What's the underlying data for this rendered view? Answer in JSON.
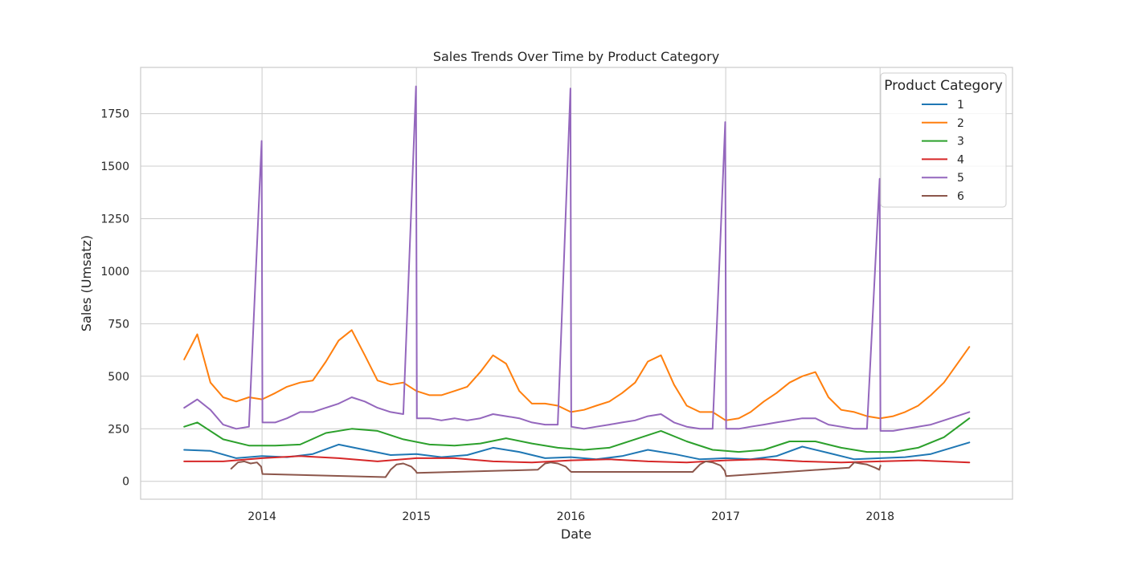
{
  "chart_data": {
    "type": "line",
    "title": "Sales Trends Over Time by Product Category",
    "xlabel": "Date",
    "ylabel": "Sales (Umsatz)",
    "x_range": [
      "2013-07-01",
      "2018-07-31"
    ],
    "x_axis_view": [
      "2013-03-20",
      "2018-11-10"
    ],
    "ylim": [
      -85,
      1970
    ],
    "x_ticks": [
      "2014",
      "2015",
      "2016",
      "2017",
      "2018"
    ],
    "x_tick_dates": [
      "2014-01-01",
      "2015-01-01",
      "2016-01-01",
      "2017-01-01",
      "2018-01-01"
    ],
    "y_ticks": [
      0,
      250,
      500,
      750,
      1000,
      1250,
      1500,
      1750
    ],
    "grid": true,
    "legend": {
      "title": "Product Category",
      "placement": "top-right"
    },
    "series": [
      {
        "name": "1",
        "color": "#1f77b4",
        "points": [
          [
            "2013-07-01",
            150
          ],
          [
            "2013-09-01",
            145
          ],
          [
            "2013-11-01",
            110
          ],
          [
            "2014-01-01",
            120
          ],
          [
            "2014-03-01",
            115
          ],
          [
            "2014-05-01",
            130
          ],
          [
            "2014-07-01",
            175
          ],
          [
            "2014-09-01",
            150
          ],
          [
            "2014-11-01",
            125
          ],
          [
            "2015-01-01",
            130
          ],
          [
            "2015-03-01",
            115
          ],
          [
            "2015-05-01",
            125
          ],
          [
            "2015-07-01",
            160
          ],
          [
            "2015-09-01",
            140
          ],
          [
            "2015-11-01",
            110
          ],
          [
            "2016-01-01",
            115
          ],
          [
            "2016-03-01",
            105
          ],
          [
            "2016-05-01",
            120
          ],
          [
            "2016-07-01",
            150
          ],
          [
            "2016-09-01",
            130
          ],
          [
            "2016-11-01",
            105
          ],
          [
            "2017-01-01",
            110
          ],
          [
            "2017-03-01",
            105
          ],
          [
            "2017-05-01",
            120
          ],
          [
            "2017-07-01",
            165
          ],
          [
            "2017-09-01",
            135
          ],
          [
            "2017-11-01",
            105
          ],
          [
            "2018-01-01",
            110
          ],
          [
            "2018-03-01",
            115
          ],
          [
            "2018-05-01",
            130
          ],
          [
            "2018-07-31",
            185
          ]
        ]
      },
      {
        "name": "2",
        "color": "#ff7f0e",
        "points": [
          [
            "2013-07-01",
            580
          ],
          [
            "2013-08-01",
            700
          ],
          [
            "2013-09-01",
            470
          ],
          [
            "2013-10-01",
            400
          ],
          [
            "2013-11-01",
            380
          ],
          [
            "2013-12-01",
            400
          ],
          [
            "2014-01-01",
            390
          ],
          [
            "2014-02-01",
            420
          ],
          [
            "2014-03-01",
            450
          ],
          [
            "2014-04-01",
            470
          ],
          [
            "2014-05-01",
            480
          ],
          [
            "2014-06-01",
            570
          ],
          [
            "2014-07-01",
            670
          ],
          [
            "2014-08-01",
            720
          ],
          [
            "2014-09-01",
            600
          ],
          [
            "2014-10-01",
            480
          ],
          [
            "2014-11-01",
            460
          ],
          [
            "2014-12-01",
            470
          ],
          [
            "2015-01-01",
            430
          ],
          [
            "2015-02-01",
            410
          ],
          [
            "2015-03-01",
            410
          ],
          [
            "2015-04-01",
            430
          ],
          [
            "2015-05-01",
            450
          ],
          [
            "2015-06-01",
            520
          ],
          [
            "2015-07-01",
            600
          ],
          [
            "2015-08-01",
            560
          ],
          [
            "2015-09-01",
            430
          ],
          [
            "2015-10-01",
            370
          ],
          [
            "2015-11-01",
            370
          ],
          [
            "2015-12-01",
            360
          ],
          [
            "2016-01-01",
            330
          ],
          [
            "2016-02-01",
            340
          ],
          [
            "2016-03-01",
            360
          ],
          [
            "2016-04-01",
            380
          ],
          [
            "2016-05-01",
            420
          ],
          [
            "2016-06-01",
            470
          ],
          [
            "2016-07-01",
            570
          ],
          [
            "2016-08-01",
            600
          ],
          [
            "2016-09-01",
            460
          ],
          [
            "2016-10-01",
            360
          ],
          [
            "2016-11-01",
            330
          ],
          [
            "2016-12-01",
            330
          ],
          [
            "2017-01-01",
            290
          ],
          [
            "2017-02-01",
            300
          ],
          [
            "2017-03-01",
            330
          ],
          [
            "2017-04-01",
            380
          ],
          [
            "2017-05-01",
            420
          ],
          [
            "2017-06-01",
            470
          ],
          [
            "2017-07-01",
            500
          ],
          [
            "2017-08-01",
            520
          ],
          [
            "2017-09-01",
            400
          ],
          [
            "2017-10-01",
            340
          ],
          [
            "2017-11-01",
            330
          ],
          [
            "2017-12-01",
            310
          ],
          [
            "2018-01-01",
            300
          ],
          [
            "2018-02-01",
            310
          ],
          [
            "2018-03-01",
            330
          ],
          [
            "2018-04-01",
            360
          ],
          [
            "2018-05-01",
            410
          ],
          [
            "2018-06-01",
            470
          ],
          [
            "2018-07-31",
            640
          ]
        ]
      },
      {
        "name": "3",
        "color": "#2ca02c",
        "points": [
          [
            "2013-07-01",
            260
          ],
          [
            "2013-08-01",
            280
          ],
          [
            "2013-10-01",
            200
          ],
          [
            "2013-12-01",
            170
          ],
          [
            "2014-02-01",
            170
          ],
          [
            "2014-04-01",
            175
          ],
          [
            "2014-06-01",
            230
          ],
          [
            "2014-08-01",
            250
          ],
          [
            "2014-10-01",
            240
          ],
          [
            "2014-12-01",
            200
          ],
          [
            "2015-02-01",
            175
          ],
          [
            "2015-04-01",
            170
          ],
          [
            "2015-06-01",
            180
          ],
          [
            "2015-08-01",
            205
          ],
          [
            "2015-10-01",
            180
          ],
          [
            "2015-12-01",
            160
          ],
          [
            "2016-02-01",
            150
          ],
          [
            "2016-04-01",
            160
          ],
          [
            "2016-06-01",
            200
          ],
          [
            "2016-08-01",
            240
          ],
          [
            "2016-10-01",
            190
          ],
          [
            "2016-12-01",
            150
          ],
          [
            "2017-02-01",
            140
          ],
          [
            "2017-04-01",
            150
          ],
          [
            "2017-06-01",
            190
          ],
          [
            "2017-08-01",
            190
          ],
          [
            "2017-10-01",
            160
          ],
          [
            "2017-12-01",
            140
          ],
          [
            "2018-02-01",
            140
          ],
          [
            "2018-04-01",
            160
          ],
          [
            "2018-06-01",
            210
          ],
          [
            "2018-07-31",
            300
          ]
        ]
      },
      {
        "name": "4",
        "color": "#d62728",
        "points": [
          [
            "2013-07-01",
            95
          ],
          [
            "2013-10-01",
            95
          ],
          [
            "2014-01-01",
            110
          ],
          [
            "2014-04-01",
            120
          ],
          [
            "2014-07-01",
            110
          ],
          [
            "2014-10-01",
            95
          ],
          [
            "2015-01-01",
            110
          ],
          [
            "2015-04-01",
            110
          ],
          [
            "2015-07-01",
            95
          ],
          [
            "2015-10-01",
            90
          ],
          [
            "2016-01-01",
            100
          ],
          [
            "2016-04-01",
            105
          ],
          [
            "2016-07-01",
            95
          ],
          [
            "2016-10-01",
            90
          ],
          [
            "2017-01-01",
            100
          ],
          [
            "2017-04-01",
            105
          ],
          [
            "2017-07-01",
            95
          ],
          [
            "2017-10-01",
            90
          ],
          [
            "2018-01-01",
            95
          ],
          [
            "2018-04-01",
            100
          ],
          [
            "2018-07-31",
            90
          ]
        ]
      },
      {
        "name": "5",
        "color": "#9467bd",
        "points": [
          [
            "2013-07-01",
            350
          ],
          [
            "2013-08-01",
            390
          ],
          [
            "2013-09-01",
            340
          ],
          [
            "2013-10-01",
            270
          ],
          [
            "2013-11-01",
            250
          ],
          [
            "2013-12-01",
            260
          ],
          [
            "2013-12-31",
            1620
          ],
          [
            "2014-01-02",
            280
          ],
          [
            "2014-02-01",
            280
          ],
          [
            "2014-03-01",
            300
          ],
          [
            "2014-04-01",
            330
          ],
          [
            "2014-05-01",
            330
          ],
          [
            "2014-06-01",
            350
          ],
          [
            "2014-07-01",
            370
          ],
          [
            "2014-08-01",
            400
          ],
          [
            "2014-09-01",
            380
          ],
          [
            "2014-10-01",
            350
          ],
          [
            "2014-11-01",
            330
          ],
          [
            "2014-12-01",
            320
          ],
          [
            "2014-12-31",
            1880
          ],
          [
            "2015-01-02",
            300
          ],
          [
            "2015-02-01",
            300
          ],
          [
            "2015-03-01",
            290
          ],
          [
            "2015-04-01",
            300
          ],
          [
            "2015-05-01",
            290
          ],
          [
            "2015-06-01",
            300
          ],
          [
            "2015-07-01",
            320
          ],
          [
            "2015-08-01",
            310
          ],
          [
            "2015-09-01",
            300
          ],
          [
            "2015-10-01",
            280
          ],
          [
            "2015-11-01",
            270
          ],
          [
            "2015-12-01",
            270
          ],
          [
            "2015-12-31",
            1870
          ],
          [
            "2016-01-02",
            260
          ],
          [
            "2016-02-01",
            250
          ],
          [
            "2016-03-01",
            260
          ],
          [
            "2016-04-01",
            270
          ],
          [
            "2016-05-01",
            280
          ],
          [
            "2016-06-01",
            290
          ],
          [
            "2016-07-01",
            310
          ],
          [
            "2016-08-01",
            320
          ],
          [
            "2016-09-01",
            280
          ],
          [
            "2016-10-01",
            260
          ],
          [
            "2016-11-01",
            250
          ],
          [
            "2016-12-01",
            250
          ],
          [
            "2016-12-31",
            1710
          ],
          [
            "2017-01-02",
            250
          ],
          [
            "2017-02-01",
            250
          ],
          [
            "2017-03-01",
            260
          ],
          [
            "2017-04-01",
            270
          ],
          [
            "2017-05-01",
            280
          ],
          [
            "2017-06-01",
            290
          ],
          [
            "2017-07-01",
            300
          ],
          [
            "2017-08-01",
            300
          ],
          [
            "2017-09-01",
            270
          ],
          [
            "2017-10-01",
            260
          ],
          [
            "2017-11-01",
            250
          ],
          [
            "2017-12-01",
            250
          ],
          [
            "2017-12-31",
            1440
          ],
          [
            "2018-01-02",
            240
          ],
          [
            "2018-02-01",
            240
          ],
          [
            "2018-03-01",
            250
          ],
          [
            "2018-04-01",
            260
          ],
          [
            "2018-05-01",
            270
          ],
          [
            "2018-06-01",
            290
          ],
          [
            "2018-07-31",
            330
          ]
        ]
      },
      {
        "name": "6",
        "color": "#8c564b",
        "points": [
          [
            "2013-10-20",
            60
          ],
          [
            "2013-11-05",
            90
          ],
          [
            "2013-11-20",
            95
          ],
          [
            "2013-12-05",
            85
          ],
          [
            "2013-12-20",
            90
          ],
          [
            "2013-12-30",
            70
          ],
          [
            "2014-01-02",
            35
          ],
          [
            "2014-10-20",
            20
          ],
          [
            "2014-11-01",
            55
          ],
          [
            "2014-11-15",
            80
          ],
          [
            "2014-12-01",
            85
          ],
          [
            "2014-12-20",
            70
          ],
          [
            "2014-12-30",
            50
          ],
          [
            "2015-01-02",
            40
          ],
          [
            "2015-10-15",
            55
          ],
          [
            "2015-11-01",
            85
          ],
          [
            "2015-11-15",
            90
          ],
          [
            "2015-12-01",
            85
          ],
          [
            "2015-12-20",
            70
          ],
          [
            "2015-12-30",
            50
          ],
          [
            "2016-01-02",
            45
          ],
          [
            "2016-10-15",
            45
          ],
          [
            "2016-11-01",
            80
          ],
          [
            "2016-11-15",
            95
          ],
          [
            "2016-12-01",
            90
          ],
          [
            "2016-12-20",
            75
          ],
          [
            "2016-12-30",
            50
          ],
          [
            "2017-01-02",
            25
          ],
          [
            "2017-10-20",
            65
          ],
          [
            "2017-11-01",
            90
          ],
          [
            "2017-11-15",
            85
          ],
          [
            "2017-12-01",
            80
          ],
          [
            "2017-12-20",
            65
          ],
          [
            "2017-12-30",
            55
          ],
          [
            "2018-01-02",
            75
          ]
        ]
      }
    ]
  }
}
